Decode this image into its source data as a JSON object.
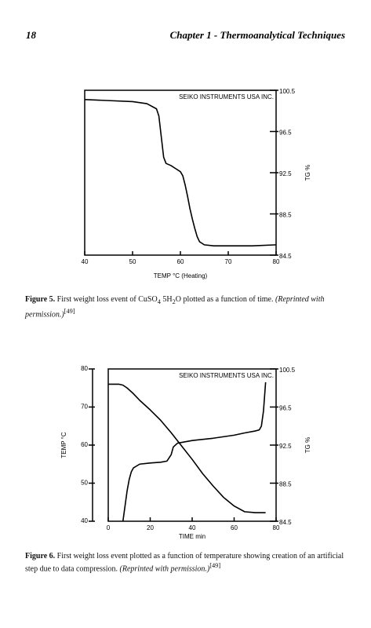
{
  "header": {
    "page_number": "18",
    "running_title": "Chapter 1 - Thermoanalytical Techniques"
  },
  "chart_data": [
    {
      "type": "line",
      "annotation": "SEIKO INSTRUMENTS USA INC.",
      "xlabel": "TEMP °C (Heating)",
      "y2label": "TG %",
      "xlim": [
        40,
        80
      ],
      "xticks": [
        40,
        50,
        60,
        70,
        80
      ],
      "y2lim": [
        84.5,
        100.5
      ],
      "y2ticks": [
        84.5,
        88.5,
        92.5,
        96.5,
        100.5
      ],
      "series": [
        {
          "color": "#000000",
          "axis": "y2",
          "x": [
            40,
            45,
            50,
            53,
            55,
            55.5,
            56,
            56.5,
            57,
            58,
            59,
            60,
            60.5,
            61,
            61.5,
            62,
            62.5,
            63,
            63.5,
            64,
            65,
            67,
            70,
            75,
            80
          ],
          "values": [
            99.6,
            99.5,
            99.4,
            99.2,
            98.7,
            98,
            96,
            94,
            93.4,
            93.2,
            92.9,
            92.6,
            92.2,
            91.3,
            90.2,
            89,
            88,
            87.1,
            86.3,
            85.8,
            85.5,
            85.4,
            85.4,
            85.4,
            85.5
          ]
        }
      ]
    },
    {
      "type": "line",
      "annotation": "SEIKO INSTRUMENTS USA INC.",
      "xlabel": "TIME min",
      "ylabel": "TEMP °C",
      "y2label": "TG %",
      "xlim": [
        0,
        80
      ],
      "xticks": [
        0,
        20,
        40,
        60,
        80
      ],
      "ylim": [
        40,
        80
      ],
      "yticks": [
        40,
        50,
        60,
        70,
        80
      ],
      "y2lim": [
        84.5,
        100.5
      ],
      "y2ticks": [
        84.5,
        88.5,
        92.5,
        96.5,
        100.5
      ],
      "series": [
        {
          "color": "#000000",
          "axis": "y",
          "x": [
            7,
            8,
            9,
            10,
            11,
            12,
            15,
            20,
            25,
            28,
            30,
            31,
            33,
            40,
            50,
            60,
            65,
            70,
            72,
            73,
            74,
            75
          ],
          "values": [
            40,
            44,
            48,
            51,
            53,
            54,
            55,
            55.3,
            55.5,
            55.8,
            57.5,
            59.5,
            60.5,
            61.2,
            61.8,
            62.6,
            63.2,
            63.7,
            64,
            65,
            69,
            76.5
          ]
        },
        {
          "color": "#000000",
          "axis": "y2",
          "x": [
            0,
            5,
            7,
            9,
            12,
            15,
            20,
            25,
            30,
            35,
            40,
            45,
            50,
            55,
            60,
            65,
            70,
            75
          ],
          "values": [
            98.9,
            98.9,
            98.8,
            98.5,
            97.9,
            97.2,
            96.2,
            95.1,
            93.8,
            92.4,
            91,
            89.5,
            88.2,
            87,
            86.1,
            85.5,
            85.4,
            85.4
          ]
        }
      ]
    }
  ],
  "captions": [
    {
      "label": "Figure 5.",
      "text_a": "First weight loss event of CuSO",
      "sub_a": "4",
      "text_b": "5H",
      "sub_b": "2",
      "text_c": "O plotted as a function of time.",
      "note": "(Reprinted with permission.)",
      "ref": "[49]"
    },
    {
      "label": "Figure 6.",
      "text_a": "First weight loss event plotted as a function of temperature showing creation of an artificial step due to data compression.",
      "note": "(Reprinted with permission.)",
      "ref": "[49]"
    }
  ]
}
